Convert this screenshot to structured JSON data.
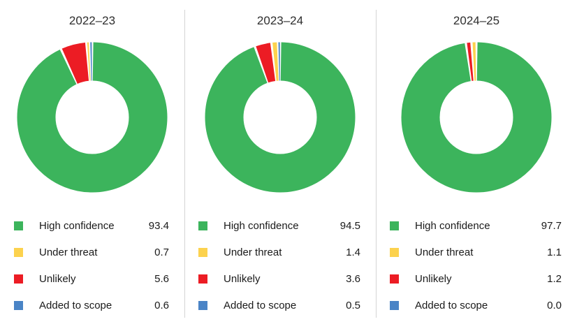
{
  "colors": {
    "green": "#3cb45c",
    "yellow": "#fcd24e",
    "red": "#ec1c24",
    "blue": "#4a84c6",
    "divider": "#d4d4d4",
    "title_text": "#2e2e2e",
    "legend_text": "#1a1a1a"
  },
  "charts": [
    {
      "title": "2022–23",
      "legend": [
        {
          "label": "High confidence",
          "value": "93.4",
          "color": "green"
        },
        {
          "label": "Under threat",
          "value": "0.7",
          "color": "yellow"
        },
        {
          "label": "Unlikely",
          "value": "5.6",
          "color": "red"
        },
        {
          "label": "Added to scope",
          "value": "0.6",
          "color": "blue"
        }
      ]
    },
    {
      "title": "2023–24",
      "legend": [
        {
          "label": "High confidence",
          "value": "94.5",
          "color": "green"
        },
        {
          "label": "Under threat",
          "value": "1.4",
          "color": "yellow"
        },
        {
          "label": "Unlikely",
          "value": "3.6",
          "color": "red"
        },
        {
          "label": "Added to scope",
          "value": "0.5",
          "color": "blue"
        }
      ]
    },
    {
      "title": "2024–25",
      "legend": [
        {
          "label": "High confidence",
          "value": "97.7",
          "color": "green"
        },
        {
          "label": "Under threat",
          "value": "1.1",
          "color": "yellow"
        },
        {
          "label": "Unlikely",
          "value": "1.2",
          "color": "red"
        },
        {
          "label": "Added to scope",
          "value": "0.0",
          "color": "blue"
        }
      ]
    }
  ],
  "chart_data": [
    {
      "type": "pie",
      "subtype": "donut",
      "title": "2022–23",
      "categories": [
        "High confidence",
        "Under threat",
        "Unlikely",
        "Added to scope"
      ],
      "values": [
        93.4,
        0.7,
        5.6,
        0.6
      ],
      "colors": [
        "#3cb45c",
        "#fcd24e",
        "#ec1c24",
        "#4a84c6"
      ],
      "slice_draw_order": [
        0,
        2,
        1,
        3
      ],
      "start_angle_deg": 0,
      "direction": "clockwise",
      "inner_radius_ratio": 0.49,
      "slice_gap": "thin white gaps between slices",
      "legend_position": "bottom"
    },
    {
      "type": "pie",
      "subtype": "donut",
      "title": "2023–24",
      "categories": [
        "High confidence",
        "Under threat",
        "Unlikely",
        "Added to scope"
      ],
      "values": [
        94.5,
        1.4,
        3.6,
        0.5
      ],
      "colors": [
        "#3cb45c",
        "#fcd24e",
        "#ec1c24",
        "#4a84c6"
      ],
      "slice_draw_order": [
        0,
        2,
        1,
        3
      ],
      "start_angle_deg": 0,
      "direction": "clockwise",
      "inner_radius_ratio": 0.49,
      "slice_gap": "thin white gaps between slices",
      "legend_position": "bottom"
    },
    {
      "type": "pie",
      "subtype": "donut",
      "title": "2024–25",
      "categories": [
        "High confidence",
        "Under threat",
        "Unlikely",
        "Added to scope"
      ],
      "values": [
        97.7,
        1.1,
        1.2,
        0.0
      ],
      "colors": [
        "#3cb45c",
        "#fcd24e",
        "#ec1c24",
        "#4a84c6"
      ],
      "slice_draw_order": [
        0,
        2,
        1,
        3
      ],
      "start_angle_deg": 0,
      "direction": "clockwise",
      "inner_radius_ratio": 0.49,
      "slice_gap": "thin white gaps between slices",
      "legend_position": "bottom"
    }
  ]
}
